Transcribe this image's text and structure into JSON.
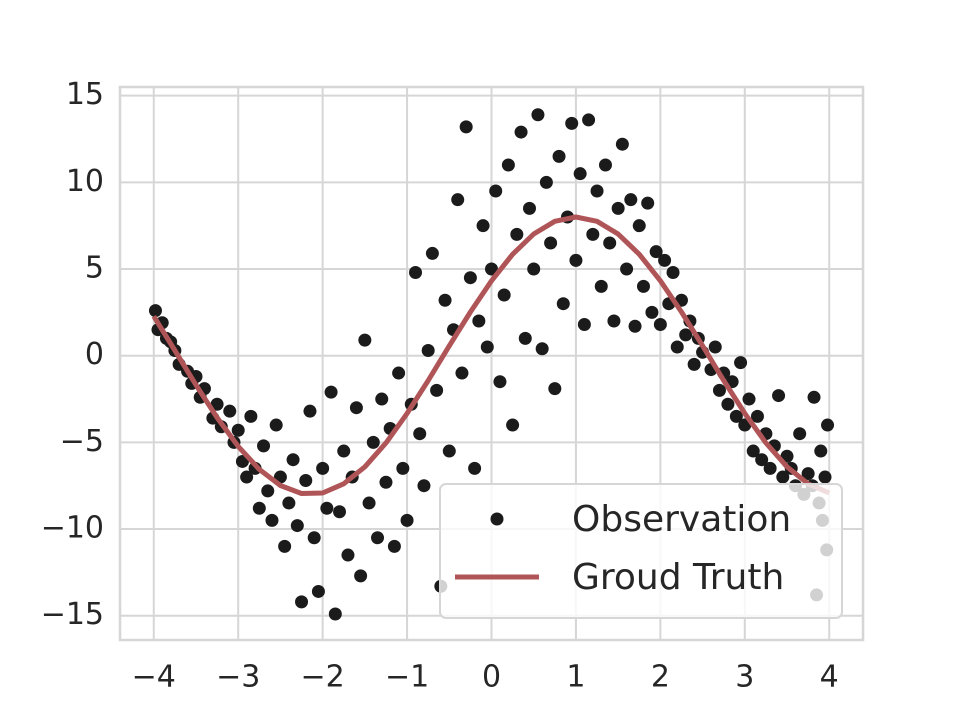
{
  "chart_data": {
    "type": "scatter",
    "grid": true,
    "legend_loc": "lower right",
    "xlim": [
      -4.4,
      4.4
    ],
    "ylim": [
      -16.4,
      15.5
    ],
    "xticks": [
      {
        "value": -4,
        "label": "−4"
      },
      {
        "value": -3,
        "label": "−3"
      },
      {
        "value": -2,
        "label": "−2"
      },
      {
        "value": -1,
        "label": "−1"
      },
      0,
      1,
      2,
      3,
      4
    ],
    "yticks": [
      {
        "value": -15,
        "label": "−15"
      },
      {
        "value": -10,
        "label": "−10"
      },
      {
        "value": -5,
        "label": "−5"
      },
      0,
      5,
      10,
      15
    ],
    "series": [
      {
        "name": "Observation",
        "type": "scatter",
        "color": "#1b1b1b",
        "x": [
          -3.98,
          -3.95,
          -3.9,
          -3.85,
          -3.8,
          -3.75,
          -3.7,
          -3.6,
          -3.55,
          -3.5,
          -3.45,
          -3.4,
          -3.3,
          -3.25,
          -3.2,
          -3.1,
          -3.05,
          -3.0,
          -2.95,
          -2.9,
          -2.85,
          -2.8,
          -2.75,
          -2.7,
          -2.65,
          -2.6,
          -2.55,
          -2.5,
          -2.45,
          -2.4,
          -2.35,
          -2.3,
          -2.25,
          -2.2,
          -2.15,
          -2.1,
          -2.05,
          -2.0,
          -1.95,
          -1.9,
          -1.85,
          -1.8,
          -1.75,
          -1.7,
          -1.65,
          -1.6,
          -1.55,
          -1.5,
          -1.45,
          -1.4,
          -1.35,
          -1.3,
          -1.25,
          -1.2,
          -1.15,
          -1.1,
          -1.05,
          -1.0,
          -0.95,
          -0.9,
          -0.85,
          -0.8,
          -0.75,
          -0.7,
          -0.65,
          -0.6,
          -0.55,
          -0.5,
          -0.45,
          -0.4,
          -0.35,
          -0.3,
          -0.25,
          -0.2,
          -0.15,
          -0.1,
          -0.05,
          0.0,
          0.05,
          0.1,
          0.15,
          0.2,
          0.25,
          0.3,
          0.35,
          0.4,
          0.45,
          0.5,
          0.55,
          0.6,
          0.65,
          0.7,
          0.75,
          0.8,
          0.85,
          0.9,
          0.95,
          1.0,
          1.05,
          1.1,
          1.15,
          1.2,
          1.25,
          1.3,
          1.35,
          1.4,
          1.45,
          1.5,
          1.55,
          1.6,
          1.65,
          1.7,
          1.75,
          1.8,
          1.85,
          1.9,
          1.95,
          2.0,
          2.05,
          2.1,
          2.15,
          2.2,
          2.25,
          2.3,
          2.35,
          2.4,
          2.45,
          2.5,
          2.6,
          2.65,
          2.7,
          2.75,
          2.8,
          2.85,
          2.9,
          2.95,
          3.0,
          3.05,
          3.1,
          3.15,
          3.2,
          3.25,
          3.3,
          3.35,
          3.4,
          3.45,
          3.5,
          3.55,
          3.6,
          3.65,
          3.7,
          3.75,
          3.8,
          3.82,
          3.85,
          3.88,
          3.9,
          3.92,
          3.95,
          3.97,
          3.98
        ],
        "values": [
          2.6,
          1.5,
          1.9,
          1.0,
          0.8,
          0.3,
          -0.5,
          -0.9,
          -1.6,
          -1.2,
          -2.4,
          -1.9,
          -3.6,
          -2.8,
          -4.1,
          -3.2,
          -5.0,
          -4.3,
          -6.1,
          -7.0,
          -3.5,
          -6.5,
          -8.8,
          -5.2,
          -7.8,
          -9.5,
          -4.0,
          -7.0,
          -11.0,
          -8.5,
          -6.0,
          -9.8,
          -14.2,
          -7.2,
          -3.2,
          -10.5,
          -13.6,
          -6.5,
          -8.8,
          -2.1,
          -14.9,
          -9.0,
          -5.5,
          -11.5,
          -7.0,
          -3.0,
          -12.7,
          0.9,
          -8.5,
          -5.0,
          -10.5,
          -2.5,
          -7.3,
          -4.2,
          -11.0,
          -1.0,
          -6.5,
          -9.5,
          -2.8,
          4.8,
          -4.5,
          -7.5,
          0.3,
          5.9,
          -2.0,
          -13.3,
          3.2,
          -5.5,
          1.5,
          9.0,
          -1.0,
          13.2,
          4.5,
          -6.5,
          2.0,
          7.5,
          0.5,
          5.0,
          9.5,
          -1.5,
          3.5,
          11.0,
          -4.0,
          7.0,
          12.9,
          1.0,
          8.5,
          5.0,
          13.9,
          0.4,
          10.0,
          6.5,
          -1.9,
          11.5,
          3.0,
          8.0,
          13.4,
          5.5,
          10.5,
          1.8,
          13.6,
          7.0,
          9.5,
          4.0,
          11.0,
          6.5,
          2.0,
          8.5,
          12.2,
          5.0,
          9.0,
          1.7,
          7.5,
          4.0,
          8.8,
          2.5,
          6.0,
          1.8,
          5.5,
          3.0,
          4.8,
          0.5,
          3.2,
          1.2,
          2.0,
          -0.5,
          1.0,
          0.2,
          -0.8,
          0.5,
          -2.0,
          -1.0,
          -2.8,
          -1.5,
          -3.5,
          -0.4,
          -4.0,
          -2.5,
          -5.5,
          -3.5,
          -6.0,
          -4.5,
          -6.5,
          -5.2,
          -2.3,
          -7.0,
          -5.8,
          -6.5,
          -7.5,
          -4.5,
          -8.0,
          -6.8,
          -7.5,
          -2.4,
          -13.8,
          -8.5,
          -5.5,
          -9.5,
          -7.0,
          -11.2,
          -4.0
        ]
      },
      {
        "name": "Groud Truth",
        "type": "line",
        "color": "#b05557",
        "x": [
          -4,
          -3.75,
          -3.5,
          -3.25,
          -3,
          -2.75,
          -2.5,
          -2.25,
          -2,
          -1.75,
          -1.5,
          -1.25,
          -1,
          -0.75,
          -0.5,
          -0.25,
          0,
          0.25,
          0.5,
          0.75,
          1,
          1.25,
          1.5,
          1.75,
          2,
          2.25,
          2.5,
          2.75,
          3,
          3.25,
          3.5,
          3.75,
          4
        ],
        "values": [
          2.27,
          0.3,
          -1.69,
          -3.57,
          -5.23,
          -6.56,
          -7.49,
          -7.95,
          -7.92,
          -7.39,
          -6.41,
          -5.03,
          -3.33,
          -1.43,
          0.57,
          2.52,
          4.32,
          5.85,
          7.02,
          7.75,
          8,
          7.75,
          7.02,
          5.85,
          4.32,
          2.52,
          0.57,
          -1.43,
          -3.33,
          -5.03,
          -6.41,
          -7.39,
          -7.92
        ]
      }
    ]
  }
}
